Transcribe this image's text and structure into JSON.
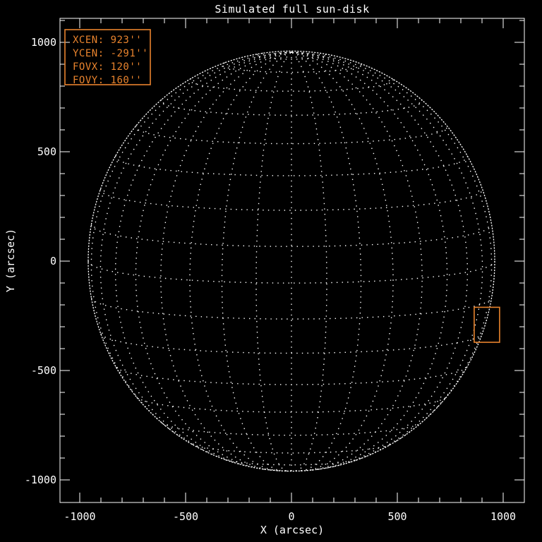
{
  "window": {
    "background": "#000000"
  },
  "chart_data": {
    "type": "line",
    "title": "Simulated full sun-disk",
    "xlabel": "X (arcsec)",
    "ylabel": "Y (arcsec)",
    "xlim": [
      -1093,
      1100
    ],
    "ylim": [
      -1103,
      1110
    ],
    "xticks_major": [
      -1000,
      -500,
      0,
      500,
      1000
    ],
    "yticks_major": [
      -1000,
      -500,
      0,
      500,
      1000
    ],
    "minor_tick_step": 100,
    "major_tick_step": 500,
    "grid": {
      "lat_step_deg": 10,
      "lon_step_deg": 10,
      "lat_max_deg": 80,
      "lon_max_deg": 80,
      "b0_deg": 6
    },
    "sun": {
      "radius_arcsec": 960
    },
    "fov": {
      "xcen": 923,
      "ycen": -291,
      "fovx": 120,
      "fovy": 160
    },
    "annotation_lines": [
      "XCEN:  923''",
      "YCEN: -291''",
      "FOVX:  120''",
      "FOVY:  160''"
    ],
    "colors": {
      "background": "#000000",
      "axis": "#ffffff",
      "grid": "#ffffff",
      "annotation": "#e8832d",
      "fov_box": "#e8832d"
    },
    "legend_position": "upper-left",
    "grid_style": "dotted"
  }
}
